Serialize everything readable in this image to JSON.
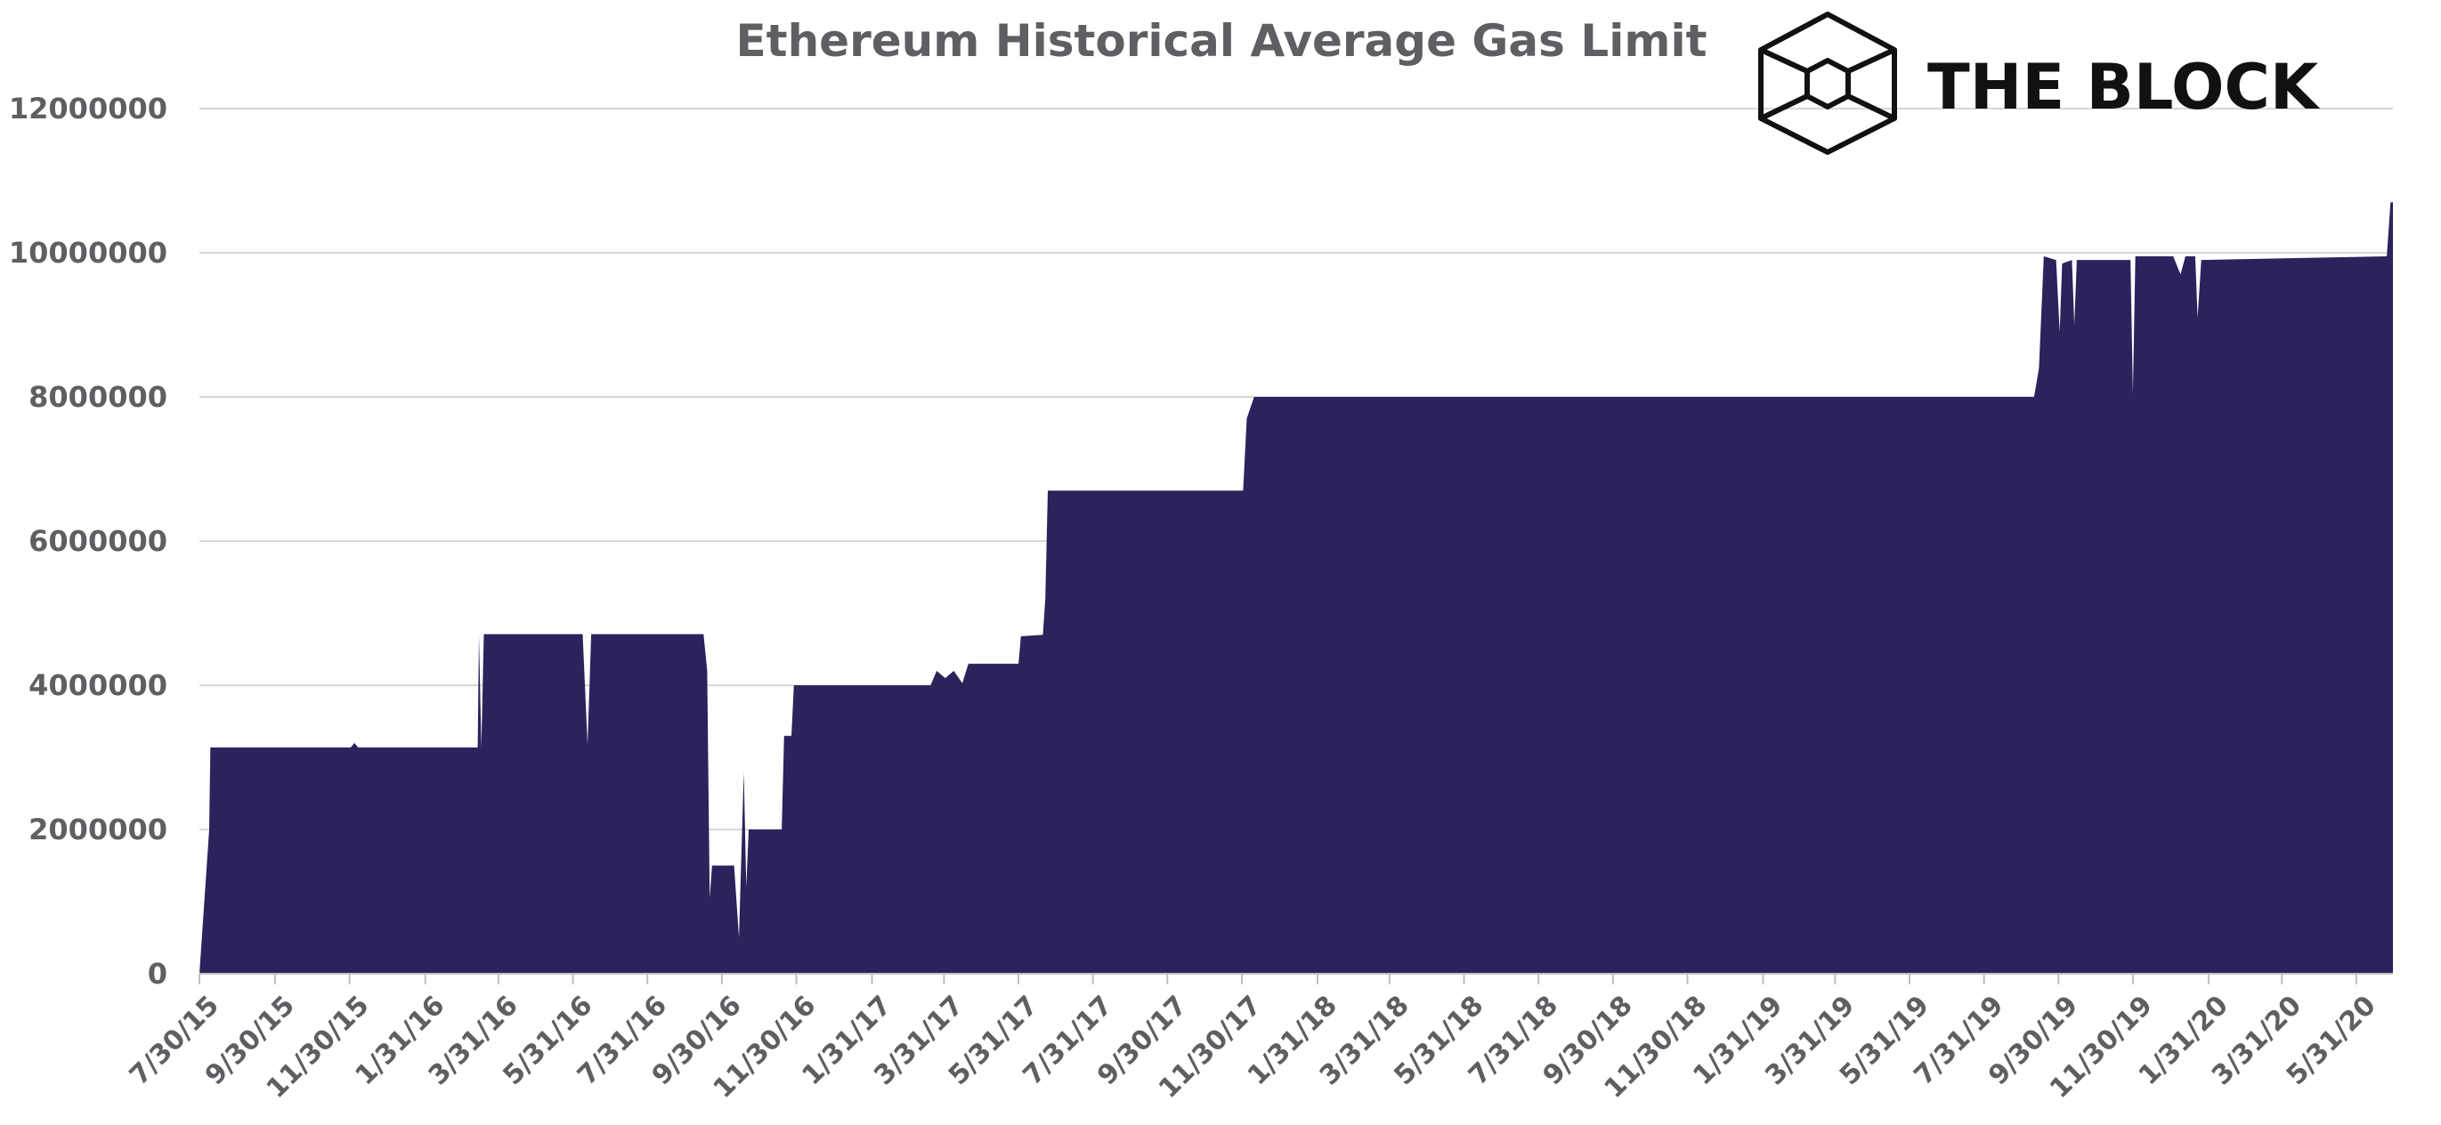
{
  "chart_data": {
    "type": "area",
    "title": "Ethereum Historical Average Gas Limit",
    "xlabel": "",
    "ylabel": "",
    "ylim": [
      0,
      12000000
    ],
    "yticks": [
      0,
      2000000,
      4000000,
      6000000,
      8000000,
      10000000,
      12000000
    ],
    "ytick_labels": [
      "0",
      "2000000",
      "4000000",
      "6000000",
      "8000000",
      "10000000",
      "12000000"
    ],
    "xlim": [
      "2015-07-30",
      "2020-06-30"
    ],
    "xticks": [
      "2015-07-30",
      "2015-09-30",
      "2015-11-30",
      "2016-01-31",
      "2016-03-31",
      "2016-05-31",
      "2016-07-31",
      "2016-09-30",
      "2016-11-30",
      "2017-01-31",
      "2017-03-31",
      "2017-05-31",
      "2017-07-31",
      "2017-09-30",
      "2017-11-30",
      "2018-01-31",
      "2018-03-31",
      "2018-05-31",
      "2018-07-31",
      "2018-09-30",
      "2018-11-30",
      "2019-01-31",
      "2019-03-31",
      "2019-05-31",
      "2019-07-31",
      "2019-09-30",
      "2019-11-30",
      "2020-01-31",
      "2020-03-31",
      "2020-05-31"
    ],
    "xtick_labels": [
      "7/30/15",
      "9/30/15",
      "11/30/15",
      "1/31/16",
      "3/31/16",
      "5/31/16",
      "7/31/16",
      "9/30/16",
      "11/30/16",
      "1/31/17",
      "3/31/17",
      "5/31/17",
      "7/31/17",
      "9/30/17",
      "11/30/17",
      "1/31/18",
      "3/31/18",
      "5/31/18",
      "7/31/18",
      "9/30/18",
      "11/30/18",
      "1/31/19",
      "3/31/19",
      "5/31/19",
      "7/31/19",
      "9/30/19",
      "11/30/19",
      "1/31/20",
      "3/31/20",
      "5/31/20"
    ],
    "grid": true,
    "colors": {
      "area": "#2a235c",
      "grid": "#d7d7d7",
      "text": "#5f5f63"
    },
    "series": [
      {
        "values": [
          [
            "2015-07-30",
            0
          ],
          [
            "2015-08-07",
            2000000
          ],
          [
            "2015-08-08",
            3140000
          ],
          [
            "2015-12-01",
            3140000
          ],
          [
            "2015-12-04",
            3200000
          ],
          [
            "2015-12-07",
            3140000
          ],
          [
            "2016-03-14",
            3140000
          ],
          [
            "2016-03-15",
            4700000
          ],
          [
            "2016-03-17",
            3140000
          ],
          [
            "2016-03-19",
            4710000
          ],
          [
            "2016-06-08",
            4710000
          ],
          [
            "2016-06-12",
            3180000
          ],
          [
            "2016-06-15",
            4710000
          ],
          [
            "2016-09-15",
            4710000
          ],
          [
            "2016-09-18",
            4200000
          ],
          [
            "2016-09-20",
            1050000
          ],
          [
            "2016-09-22",
            1500000
          ],
          [
            "2016-10-10",
            1500000
          ],
          [
            "2016-10-14",
            500000
          ],
          [
            "2016-10-18",
            2800000
          ],
          [
            "2016-10-20",
            1200000
          ],
          [
            "2016-10-22",
            2000000
          ],
          [
            "2016-11-18",
            2000000
          ],
          [
            "2016-11-20",
            3300000
          ],
          [
            "2016-11-26",
            3300000
          ],
          [
            "2016-11-28",
            4000000
          ],
          [
            "2017-03-20",
            4000000
          ],
          [
            "2017-03-25",
            4200000
          ],
          [
            "2017-04-01",
            4100000
          ],
          [
            "2017-04-08",
            4200000
          ],
          [
            "2017-04-15",
            4030000
          ],
          [
            "2017-04-20",
            4300000
          ],
          [
            "2017-05-31",
            4300000
          ],
          [
            "2017-06-02",
            4680000
          ],
          [
            "2017-06-20",
            4700000
          ],
          [
            "2017-06-22",
            5200000
          ],
          [
            "2017-06-24",
            6700000
          ],
          [
            "2017-12-01",
            6700000
          ],
          [
            "2017-12-04",
            7700000
          ],
          [
            "2017-12-10",
            8000000
          ],
          [
            "2019-09-10",
            8000000
          ],
          [
            "2019-09-14",
            8400000
          ],
          [
            "2019-09-18",
            9950000
          ],
          [
            "2019-09-28",
            9900000
          ],
          [
            "2019-10-01",
            8900000
          ],
          [
            "2019-10-03",
            9850000
          ],
          [
            "2019-10-11",
            9900000
          ],
          [
            "2019-10-13",
            9000000
          ],
          [
            "2019-10-15",
            9900000
          ],
          [
            "2019-11-28",
            9900000
          ],
          [
            "2019-11-30",
            8050000
          ],
          [
            "2019-12-02",
            9950000
          ],
          [
            "2020-01-02",
            9950000
          ],
          [
            "2020-01-08",
            9700000
          ],
          [
            "2020-01-12",
            9950000
          ],
          [
            "2020-01-20",
            9950000
          ],
          [
            "2020-01-22",
            9100000
          ],
          [
            "2020-01-25",
            9900000
          ],
          [
            "2020-06-25",
            9950000
          ],
          [
            "2020-06-28",
            10700000
          ],
          [
            "2020-06-30",
            10700000
          ]
        ]
      }
    ]
  },
  "logo": {
    "text": "THE BLOCK",
    "icon": "cube-icon"
  }
}
